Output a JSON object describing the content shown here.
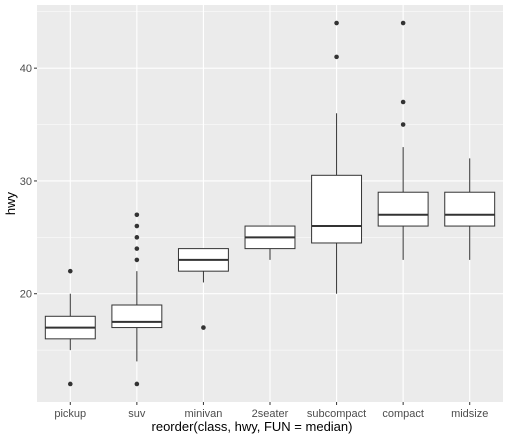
{
  "chart_data": {
    "type": "boxplot",
    "xlabel": "reorder(class, hwy, FUN = median)",
    "ylabel": "hwy",
    "categories": [
      "pickup",
      "suv",
      "minivan",
      "2seater",
      "subcompact",
      "compact",
      "midsize"
    ],
    "boxes": [
      {
        "category": "pickup",
        "whisker_low": 15,
        "q1": 16,
        "median": 17,
        "q3": 18,
        "whisker_high": 20,
        "outliers": [
          22,
          12
        ]
      },
      {
        "category": "suv",
        "whisker_low": 14,
        "q1": 17,
        "median": 17.5,
        "q3": 19,
        "whisker_high": 22,
        "outliers": [
          27,
          26,
          25,
          24,
          23,
          12
        ]
      },
      {
        "category": "minivan",
        "whisker_low": 21,
        "q1": 22,
        "median": 23,
        "q3": 24,
        "whisker_high": 24,
        "outliers": [
          17
        ]
      },
      {
        "category": "2seater",
        "whisker_low": 23,
        "q1": 24,
        "median": 25,
        "q3": 26,
        "whisker_high": 26,
        "outliers": []
      },
      {
        "category": "subcompact",
        "whisker_low": 20,
        "q1": 24.5,
        "median": 26,
        "q3": 30.5,
        "whisker_high": 36,
        "outliers": [
          44,
          41
        ]
      },
      {
        "category": "compact",
        "whisker_low": 23,
        "q1": 26,
        "median": 27,
        "q3": 29,
        "whisker_high": 33,
        "outliers": [
          44,
          37,
          35
        ]
      },
      {
        "category": "midsize",
        "whisker_low": 23,
        "q1": 26,
        "median": 27,
        "q3": 29,
        "whisker_high": 32,
        "outliers": []
      }
    ],
    "y_ticks": [
      20,
      30,
      40
    ],
    "ylim": [
      10.4,
      45.6
    ],
    "grid": true
  },
  "colors": {
    "panel": "#ebebeb",
    "grid_major": "#ffffff",
    "box_fill": "#ffffff",
    "box_stroke": "#333333",
    "outlier": "#333333"
  }
}
